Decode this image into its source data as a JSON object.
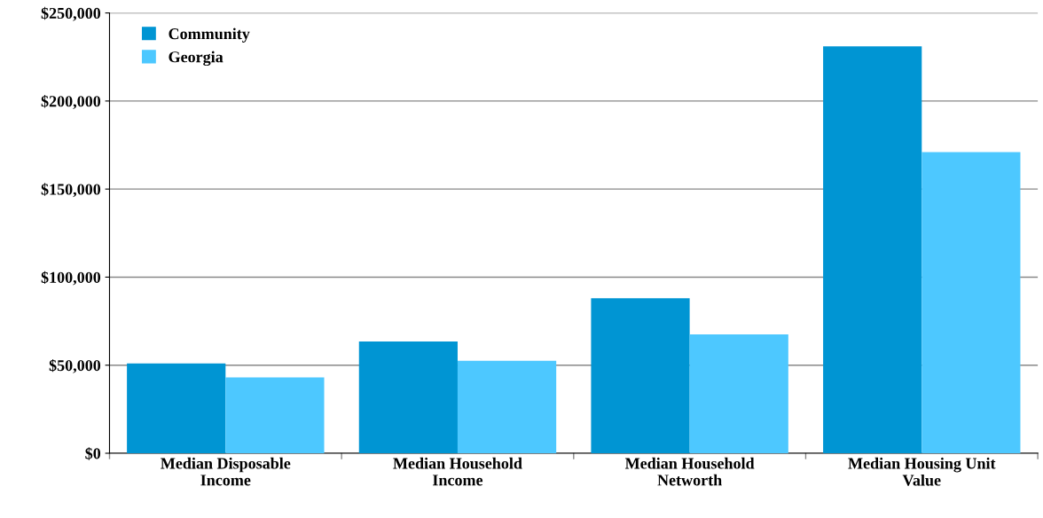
{
  "chart_data": {
    "type": "bar",
    "categories": [
      "Median Disposable\nIncome",
      "Median Household\nIncome",
      "Median Household\nNetworth",
      "Median Housing Unit\nValue"
    ],
    "series": [
      {
        "name": "Community",
        "color": "#0095d3",
        "values": [
          51000,
          63500,
          88000,
          231000
        ]
      },
      {
        "name": "Georgia",
        "color": "#4dc8ff",
        "values": [
          43000,
          52500,
          67500,
          171000
        ]
      }
    ],
    "ylim": [
      0,
      250000
    ],
    "yticks": [
      {
        "value": 0,
        "label": "$0"
      },
      {
        "value": 50000,
        "label": "$50,000"
      },
      {
        "value": 100000,
        "label": "$100,000"
      },
      {
        "value": 150000,
        "label": "$150,000"
      },
      {
        "value": 200000,
        "label": "$200,000"
      },
      {
        "value": 250000,
        "label": "$250,000"
      }
    ],
    "grid": "y",
    "legend": "top left"
  }
}
